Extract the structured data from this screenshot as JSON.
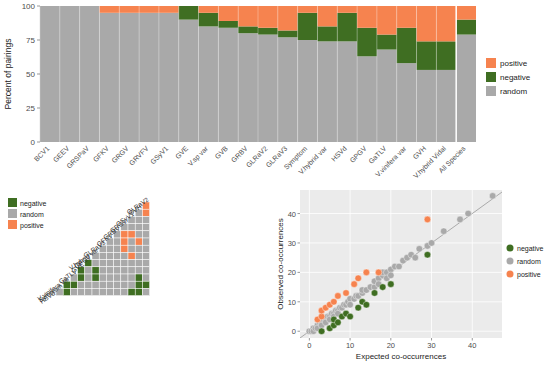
{
  "chart_data": [
    {
      "type": "bar",
      "stacked": true,
      "ylabel": "Percent of pairings",
      "categories": [
        "BCV1",
        "GEEV",
        "GRSPaV",
        "GFKV",
        "GRGV",
        "GRVFV",
        "GSyV1",
        "GVE",
        "V.sp var",
        "GVB",
        "GRBV",
        "GLRaV2",
        "GLRaV3",
        "Symptom",
        "V.hybrid var",
        "HSVd",
        "GPGV",
        "GaTLV",
        "V.vinifera var",
        "GVH",
        "V.hybrid Vidal",
        "All Species"
      ],
      "series": [
        {
          "name": "random",
          "color": "#a9a9a9",
          "values": [
            100,
            100,
            100,
            95,
            95,
            95,
            95,
            90,
            85,
            84,
            80,
            79,
            77,
            75,
            74,
            74,
            63,
            68,
            58,
            53,
            53,
            79
          ]
        },
        {
          "name": "negative",
          "color": "#3f6e22",
          "values": [
            0,
            0,
            0,
            0,
            0,
            0,
            0,
            10,
            10,
            5,
            5,
            5,
            5,
            20,
            11,
            21,
            21,
            11,
            26,
            21,
            21,
            11
          ]
        },
        {
          "name": "positive",
          "color": "#f6834f",
          "values": [
            0,
            0,
            0,
            5,
            5,
            5,
            5,
            0,
            5,
            11,
            15,
            16,
            18,
            5,
            15,
            5,
            16,
            21,
            16,
            26,
            26,
            10
          ]
        }
      ],
      "ylim": [
        0,
        100
      ],
      "yticks": [
        0,
        25,
        50,
        75,
        100
      ],
      "legend": "right"
    },
    {
      "type": "heatmap",
      "labels": [
        "GLRaV2",
        "GVH",
        "GSyV1",
        "GRGV",
        "GRBV",
        "GFKV",
        "GLRaV3",
        "V.hybrid var",
        "GPGV",
        "GVE",
        "GaTLV",
        "V.vinifera var",
        "Symptom",
        "HSVd"
      ],
      "classes": [
        {
          "name": "negative",
          "color": "#3f6e22"
        },
        {
          "name": "random",
          "color": "#a9a9a9"
        },
        {
          "name": "positive",
          "color": "#f6834f"
        }
      ],
      "cells": [
        [
          "positive"
        ],
        [
          "random",
          "positive"
        ],
        [
          "random",
          "random",
          "random"
        ],
        [
          "random",
          "random",
          "random",
          "random"
        ],
        [
          "random",
          "positive",
          "positive",
          "random",
          "random"
        ],
        [
          "random",
          "random",
          "positive",
          "random",
          "positive",
          "random"
        ],
        [
          "random",
          "random",
          "random",
          "positive",
          "random",
          "random",
          "random"
        ],
        [
          "random",
          "random",
          "random",
          "random",
          "random",
          "positive",
          "random",
          "random"
        ],
        [
          "negative",
          "random",
          "random",
          "random",
          "random",
          "random",
          "random",
          "random",
          "random"
        ],
        [
          "negative",
          "random",
          "negative",
          "random",
          "random",
          "random",
          "random",
          "random",
          "random",
          "random"
        ],
        [
          "random",
          "negative",
          "random",
          "negative",
          "random",
          "random",
          "random",
          "random",
          "random",
          "negative",
          "random"
        ],
        [
          "negative",
          "negative",
          "random",
          "random",
          "random",
          "random",
          "random",
          "random",
          "random",
          "random",
          "negative",
          "negative"
        ],
        [
          "random",
          "negative",
          "random",
          "random",
          "random",
          "random",
          "random",
          "random",
          "random",
          "random",
          "negative",
          "negative",
          "random"
        ]
      ],
      "legend": "left"
    },
    {
      "type": "scatter",
      "xlabel": "Expected co-occurrences",
      "ylabel": "Observed co-occurrences",
      "xlim": [
        -2.3,
        47.3
      ],
      "ylim": [
        -2.3,
        48
      ],
      "xticks": [
        0,
        10,
        20,
        30,
        40
      ],
      "yticks": [
        0,
        10,
        20,
        30,
        40
      ],
      "grid": true,
      "legend": "right",
      "series": [
        {
          "name": "negative",
          "color": "#3f6e22",
          "x": [
            3,
            5,
            6,
            6,
            7,
            8,
            9,
            10,
            12,
            13,
            14,
            16,
            18,
            20,
            29
          ],
          "values": [
            0,
            1,
            2,
            4,
            3,
            5,
            6,
            5,
            8,
            10,
            9,
            13,
            15,
            16,
            26
          ]
        },
        {
          "name": "random",
          "color": "#a9a9a9",
          "x": [
            0,
            0.5,
            1,
            1,
            1.5,
            2,
            2,
            2.5,
            3,
            3,
            3.5,
            4,
            4,
            4.5,
            5,
            5,
            5.5,
            6,
            6,
            6.5,
            7,
            7,
            7.5,
            8,
            8.5,
            9,
            9.5,
            10,
            10,
            11,
            11.5,
            12,
            13,
            13,
            14,
            15,
            16,
            16,
            17,
            17,
            18,
            18,
            19,
            19,
            20,
            20,
            21,
            22,
            23,
            24,
            25,
            26,
            27,
            29,
            30,
            33,
            37,
            39,
            45
          ],
          "values": [
            0,
            0,
            1,
            0,
            1,
            2,
            1,
            3,
            3,
            2,
            4,
            4,
            3,
            5,
            5,
            4,
            6,
            6,
            5,
            7,
            7,
            6,
            8,
            8,
            9,
            9,
            10,
            11,
            9,
            11,
            12,
            12,
            13,
            14,
            14,
            15,
            15,
            17,
            18,
            16,
            19,
            20,
            20,
            18,
            21,
            19,
            22,
            22,
            24,
            25,
            26,
            25,
            28,
            29,
            30,
            34,
            38,
            40,
            46
          ]
        },
        {
          "name": "positive",
          "color": "#f6834f",
          "x": [
            2,
            3,
            3,
            4,
            5,
            6,
            7,
            9,
            11,
            12,
            14,
            17,
            29
          ],
          "values": [
            4,
            5,
            7,
            8,
            9,
            10,
            12,
            13,
            16,
            18,
            20,
            20,
            38
          ]
        }
      ]
    }
  ]
}
